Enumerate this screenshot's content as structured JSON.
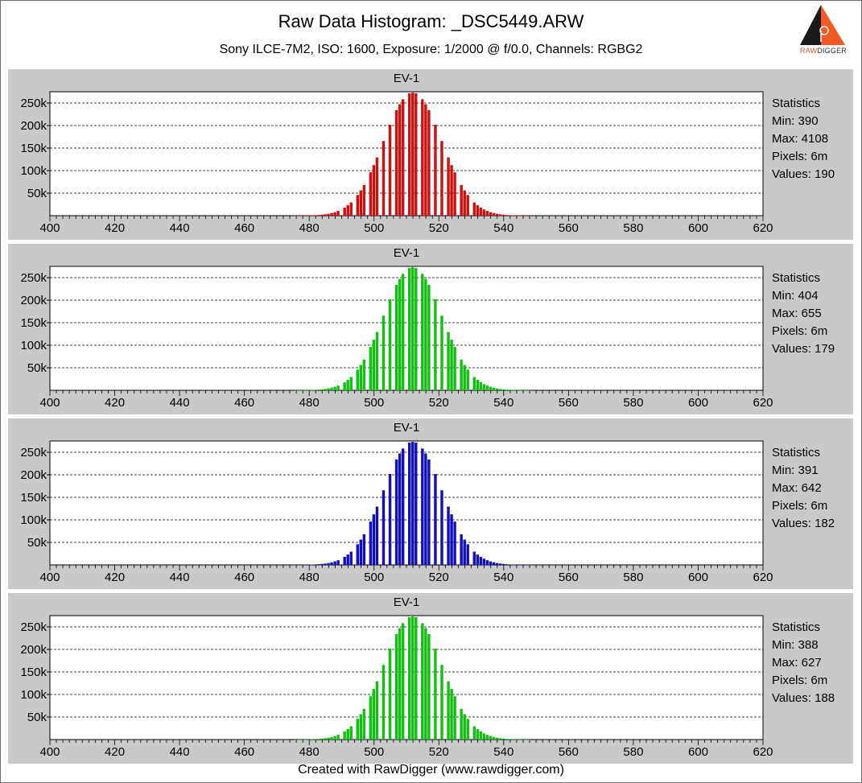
{
  "header": {
    "title": "Raw Data Histogram: _DSC5449.ARW",
    "subtitle": "Sony ILCE-7M2, ISO: 1600, Exposure: 1/2000 @ f/0.0, Channels: RGBG2"
  },
  "logo": {
    "text_raw": "RAW",
    "text_digger": "DIGGER"
  },
  "footer": "Created with RawDigger (www.rawdigger.com)",
  "stats_title": "Statistics",
  "chart_data": [
    {
      "type": "bar",
      "title": "EV-1",
      "color": "#cc1111",
      "xlim": [
        400,
        620
      ],
      "ylim": [
        0,
        275000
      ],
      "xticks": [
        400,
        420,
        440,
        460,
        480,
        500,
        520,
        540,
        560,
        580,
        600,
        620
      ],
      "yticks": [
        50000,
        100000,
        150000,
        200000,
        250000
      ],
      "ytick_labels": [
        "50k",
        "100k",
        "150k",
        "200k",
        "250k"
      ],
      "mean": 512,
      "sigma": 9.0,
      "peak": 273000,
      "gap_values": [
        490,
        494,
        498,
        502,
        504,
        506,
        510,
        514,
        518,
        520,
        522,
        526,
        530
      ],
      "stats": {
        "min": "Min: 390",
        "max": "Max: 4108",
        "pixels": "Pixels: 6m",
        "values": "Values: 190"
      }
    },
    {
      "type": "bar",
      "title": "EV-1",
      "color": "#11c011",
      "xlim": [
        400,
        620
      ],
      "ylim": [
        0,
        275000
      ],
      "xticks": [
        400,
        420,
        440,
        460,
        480,
        500,
        520,
        540,
        560,
        580,
        600,
        620
      ],
      "yticks": [
        50000,
        100000,
        150000,
        200000,
        250000
      ],
      "ytick_labels": [
        "50k",
        "100k",
        "150k",
        "200k",
        "250k"
      ],
      "mean": 512,
      "sigma": 9.0,
      "peak": 273000,
      "gap_values": [
        490,
        494,
        498,
        502,
        504,
        506,
        510,
        514,
        518,
        520,
        522,
        526,
        530
      ],
      "stats": {
        "min": "Min: 404",
        "max": "Max: 655",
        "pixels": "Pixels: 6m",
        "values": "Values: 179"
      }
    },
    {
      "type": "bar",
      "title": "EV-1",
      "color": "#1111bb",
      "xlim": [
        400,
        620
      ],
      "ylim": [
        0,
        275000
      ],
      "xticks": [
        400,
        420,
        440,
        460,
        480,
        500,
        520,
        540,
        560,
        580,
        600,
        620
      ],
      "yticks": [
        50000,
        100000,
        150000,
        200000,
        250000
      ],
      "ytick_labels": [
        "50k",
        "100k",
        "150k",
        "200k",
        "250k"
      ],
      "mean": 512,
      "sigma": 9.0,
      "peak": 273000,
      "gap_values": [
        490,
        494,
        498,
        502,
        504,
        506,
        510,
        514,
        518,
        520,
        522,
        526,
        530
      ],
      "stats": {
        "min": "Min: 391",
        "max": "Max: 642",
        "pixels": "Pixels: 6m",
        "values": "Values: 182"
      }
    },
    {
      "type": "bar",
      "title": "EV-1",
      "color": "#11c011",
      "xlim": [
        400,
        620
      ],
      "ylim": [
        0,
        275000
      ],
      "xticks": [
        400,
        420,
        440,
        460,
        480,
        500,
        520,
        540,
        560,
        580,
        600,
        620
      ],
      "yticks": [
        50000,
        100000,
        150000,
        200000,
        250000
      ],
      "ytick_labels": [
        "50k",
        "100k",
        "150k",
        "200k",
        "250k"
      ],
      "mean": 512,
      "sigma": 9.0,
      "peak": 273000,
      "gap_values": [
        490,
        494,
        498,
        502,
        504,
        506,
        510,
        514,
        518,
        520,
        522,
        526,
        530
      ],
      "stats": {
        "min": "Min: 388",
        "max": "Max: 627",
        "pixels": "Pixels: 6m",
        "values": "Values: 188"
      }
    }
  ]
}
